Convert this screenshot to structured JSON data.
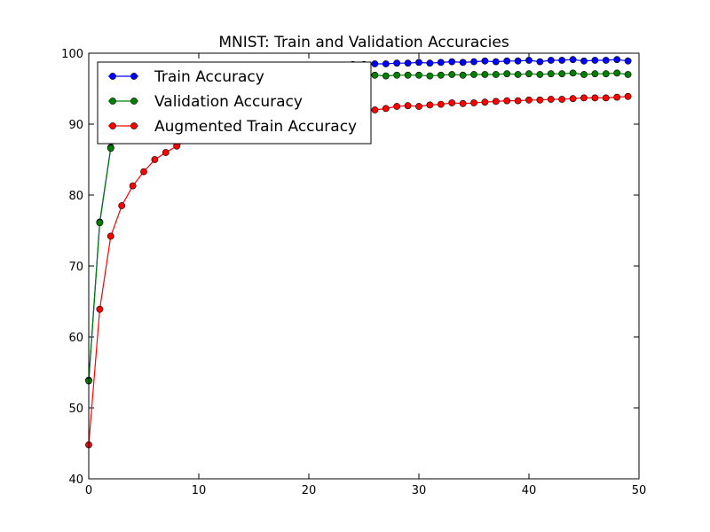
{
  "chart_data": {
    "type": "line",
    "title": "MNIST: Train and Validation Accuracies",
    "xlabel": "",
    "ylabel": "",
    "xlim": [
      0,
      50
    ],
    "ylim": [
      40,
      100
    ],
    "x_ticks": [
      "0",
      "10",
      "20",
      "30",
      "40",
      "50"
    ],
    "y_ticks": [
      "40",
      "50",
      "60",
      "70",
      "80",
      "90",
      "100"
    ],
    "grid": false,
    "legend_position": "top-left",
    "x": [
      0,
      1,
      2,
      3,
      4,
      5,
      6,
      7,
      8,
      9,
      10,
      11,
      12,
      13,
      14,
      15,
      16,
      17,
      18,
      19,
      20,
      21,
      22,
      23,
      24,
      25,
      26,
      27,
      28,
      29,
      30,
      31,
      32,
      33,
      34,
      35,
      36,
      37,
      38,
      39,
      40,
      41,
      42,
      43,
      44,
      45,
      46,
      47,
      48,
      49
    ],
    "series": [
      {
        "name": "Train Accuracy",
        "color": "#0000ff",
        "values": [
          53.9,
          76.2,
          86.7,
          89.9,
          91.8,
          93.1,
          94.0,
          94.7,
          95.3,
          95.8,
          96.1,
          96.5,
          96.8,
          97.0,
          97.2,
          97.4,
          97.6,
          97.7,
          97.8,
          97.9,
          98.0,
          98.1,
          98.2,
          98.3,
          98.4,
          98.4,
          98.5,
          98.5,
          98.6,
          98.6,
          98.7,
          98.6,
          98.7,
          98.8,
          98.7,
          98.8,
          98.9,
          98.8,
          98.9,
          98.9,
          99.0,
          98.8,
          99.0,
          99.0,
          99.1,
          98.9,
          99.0,
          99.0,
          99.1,
          98.9
        ]
      },
      {
        "name": "Validation Accuracy",
        "color": "#008000",
        "values": [
          53.8,
          76.1,
          86.6,
          89.6,
          91.3,
          92.5,
          93.3,
          93.9,
          94.4,
          94.8,
          95.1,
          95.4,
          95.6,
          95.8,
          96.0,
          96.1,
          96.3,
          96.4,
          96.5,
          96.6,
          96.6,
          96.7,
          96.7,
          96.8,
          96.8,
          96.9,
          96.9,
          96.8,
          96.9,
          96.9,
          96.9,
          96.8,
          96.9,
          97.0,
          96.9,
          97.0,
          97.0,
          97.0,
          97.1,
          97.0,
          97.1,
          97.0,
          97.1,
          97.1,
          97.2,
          97.0,
          97.1,
          97.1,
          97.2,
          97.0
        ]
      },
      {
        "name": "Augmented Train Accuracy",
        "color": "#ff0000",
        "values": [
          44.8,
          63.9,
          74.2,
          78.5,
          81.3,
          83.3,
          85.0,
          86.0,
          86.9,
          87.8,
          88.5,
          89.1,
          89.6,
          90.0,
          90.4,
          90.7,
          91.0,
          91.2,
          91.4,
          91.6,
          91.7,
          91.8,
          91.9,
          92.0,
          92.1,
          92.1,
          92.0,
          92.2,
          92.5,
          92.6,
          92.5,
          92.7,
          92.8,
          93.0,
          92.9,
          93.0,
          93.1,
          93.2,
          93.3,
          93.3,
          93.4,
          93.4,
          93.5,
          93.5,
          93.6,
          93.7,
          93.7,
          93.7,
          93.8,
          93.9
        ]
      }
    ]
  }
}
